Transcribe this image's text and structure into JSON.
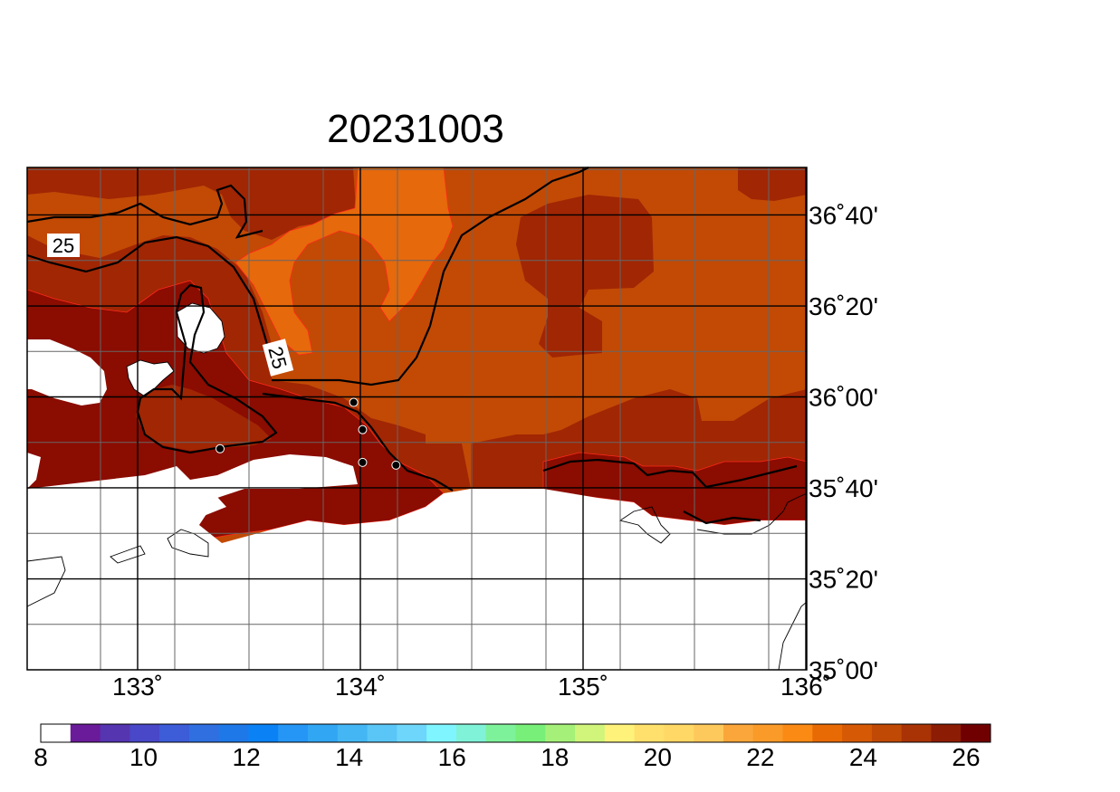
{
  "title": "20231003",
  "map": {
    "region": "Sea of Japan off Sanin coast (Oki Islands)",
    "lon_range": [
      132.5,
      136.0
    ],
    "lat_range": [
      35.0,
      36.833
    ],
    "lon_ticks": [
      {
        "value": 133,
        "label": "133˚"
      },
      {
        "value": 134,
        "label": "134˚"
      },
      {
        "value": 135,
        "label": "135˚"
      },
      {
        "value": 136,
        "label": "136˚"
      }
    ],
    "lat_ticks": [
      {
        "value": 36.667,
        "label": "36˚40'"
      },
      {
        "value": 36.333,
        "label": "36˚20'"
      },
      {
        "value": 36.0,
        "label": "36˚00'"
      },
      {
        "value": 35.667,
        "label": "35˚40'"
      },
      {
        "value": 35.333,
        "label": "35˚20'"
      },
      {
        "value": 35.0,
        "label": "35˚00'"
      }
    ],
    "contour_labels": [
      "25",
      "25"
    ],
    "stations": [
      {
        "lon": 133.37,
        "lat": 35.81
      },
      {
        "lon": 133.97,
        "lat": 35.98
      },
      {
        "lon": 134.01,
        "lat": 35.88
      },
      {
        "lon": 134.01,
        "lat": 35.76
      },
      {
        "lon": 134.16,
        "lat": 35.75
      }
    ]
  },
  "colorbar": {
    "tick_labels": [
      "8",
      "10",
      "12",
      "14",
      "16",
      "18",
      "20",
      "22",
      "24",
      "26"
    ],
    "colors": [
      "#ffffff",
      "#6a1b9a",
      "#5535b0",
      "#4848c8",
      "#3c5cd8",
      "#2f6fe0",
      "#1e78e8",
      "#0a82f5",
      "#2596f5",
      "#31a6f3",
      "#43b6f3",
      "#5ac6f7",
      "#6fd6fb",
      "#7ff5ff",
      "#7ff2d7",
      "#7ef29a",
      "#78ef78",
      "#a5f078",
      "#d0f57a",
      "#fff27a",
      "#ffe06c",
      "#ffd866",
      "#fec95c",
      "#fba63a",
      "#fa9a28",
      "#fa8a14",
      "#e86a05",
      "#d65a06",
      "#c04a05",
      "#a93305",
      "#8c1c03",
      "#700000"
    ]
  },
  "sst_colors": {
    "c22": "#e6690b",
    "c23": "#c24a05",
    "c24": "#a12604",
    "c25": "#8b0c00",
    "land": "#ffffff"
  }
}
